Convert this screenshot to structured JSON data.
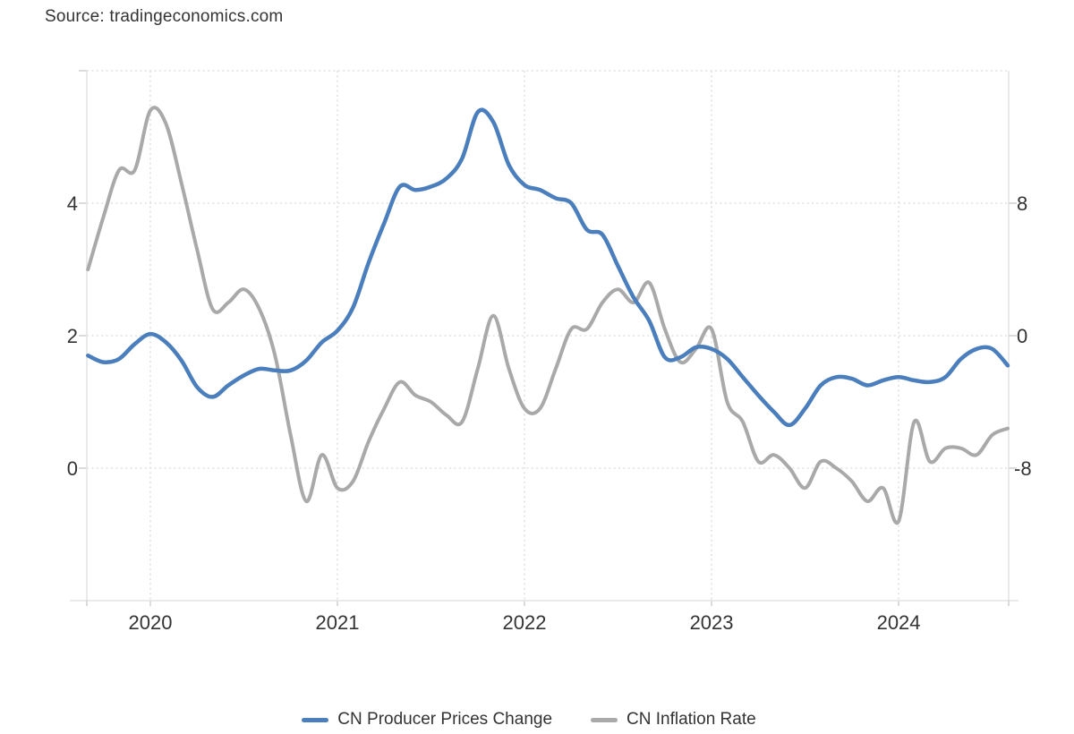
{
  "source": {
    "text": "Source: tradingeconomics.com"
  },
  "chart_data": {
    "type": "line",
    "title": "",
    "grid": "dotted",
    "legend_position": "bottom",
    "x": [
      "2019-09",
      "2019-10",
      "2019-11",
      "2019-12",
      "2020-01",
      "2020-02",
      "2020-03",
      "2020-04",
      "2020-05",
      "2020-06",
      "2020-07",
      "2020-08",
      "2020-09",
      "2020-10",
      "2020-11",
      "2020-12",
      "2021-01",
      "2021-02",
      "2021-03",
      "2021-04",
      "2021-05",
      "2021-06",
      "2021-07",
      "2021-08",
      "2021-09",
      "2021-10",
      "2021-11",
      "2021-12",
      "2022-01",
      "2022-02",
      "2022-03",
      "2022-04",
      "2022-05",
      "2022-06",
      "2022-07",
      "2022-08",
      "2022-09",
      "2022-10",
      "2022-11",
      "2022-12",
      "2023-01",
      "2023-02",
      "2023-03",
      "2023-04",
      "2023-05",
      "2023-06",
      "2023-07",
      "2023-08",
      "2023-09",
      "2023-10",
      "2023-11",
      "2023-12",
      "2024-01",
      "2024-02",
      "2024-03",
      "2024-04",
      "2024-05",
      "2024-06",
      "2024-07",
      "2024-08"
    ],
    "x_tick_labels": [
      "2020",
      "2021",
      "2022",
      "2023",
      "2024"
    ],
    "series": [
      {
        "name": "CN Producer Prices Change",
        "color": "#4a7ebc",
        "axis": "right",
        "values": [
          -1.2,
          -1.6,
          -1.4,
          -0.5,
          0.1,
          -0.4,
          -1.5,
          -3.1,
          -3.7,
          -3.0,
          -2.4,
          -2.0,
          -2.1,
          -2.1,
          -1.5,
          -0.4,
          0.3,
          1.7,
          4.4,
          6.8,
          9.0,
          8.8,
          9.0,
          9.5,
          10.7,
          13.5,
          12.9,
          10.3,
          9.1,
          8.8,
          8.3,
          8.0,
          6.4,
          6.1,
          4.2,
          2.3,
          0.9,
          -1.3,
          -1.3,
          -0.7,
          -0.8,
          -1.4,
          -2.5,
          -3.6,
          -4.6,
          -5.4,
          -4.4,
          -3.0,
          -2.5,
          -2.6,
          -3.0,
          -2.7,
          -2.5,
          -2.7,
          -2.8,
          -2.5,
          -1.4,
          -0.8,
          -0.8,
          -1.8
        ]
      },
      {
        "name": "CN Inflation Rate",
        "color": "#a9a9a9",
        "axis": "left",
        "values": [
          3.0,
          3.8,
          4.5,
          4.5,
          5.4,
          5.2,
          4.3,
          3.3,
          2.4,
          2.5,
          2.7,
          2.4,
          1.7,
          0.5,
          -0.5,
          0.2,
          -0.3,
          -0.2,
          0.4,
          0.9,
          1.3,
          1.1,
          1.0,
          0.8,
          0.7,
          1.5,
          2.3,
          1.5,
          0.9,
          0.9,
          1.5,
          2.1,
          2.1,
          2.5,
          2.7,
          2.5,
          2.8,
          2.1,
          1.6,
          1.8,
          2.1,
          1.0,
          0.7,
          0.1,
          0.2,
          0.0,
          -0.3,
          0.1,
          0.0,
          -0.2,
          -0.5,
          -0.3,
          -0.8,
          0.7,
          0.1,
          0.3,
          0.3,
          0.2,
          0.5,
          0.6
        ]
      }
    ],
    "left_axis": {
      "min": -2,
      "max": 6,
      "tick_labels": [
        0,
        2,
        4
      ],
      "grid_values": [
        0,
        2,
        4,
        6
      ]
    },
    "right_axis": {
      "min": -16,
      "max": 16,
      "tick_labels": [
        -8,
        0,
        8
      ]
    }
  },
  "colors": {
    "axis_line": "#e4e4e4",
    "grid": "#e0e0e0",
    "tick": "#d2d2d2",
    "text": "#333333"
  }
}
